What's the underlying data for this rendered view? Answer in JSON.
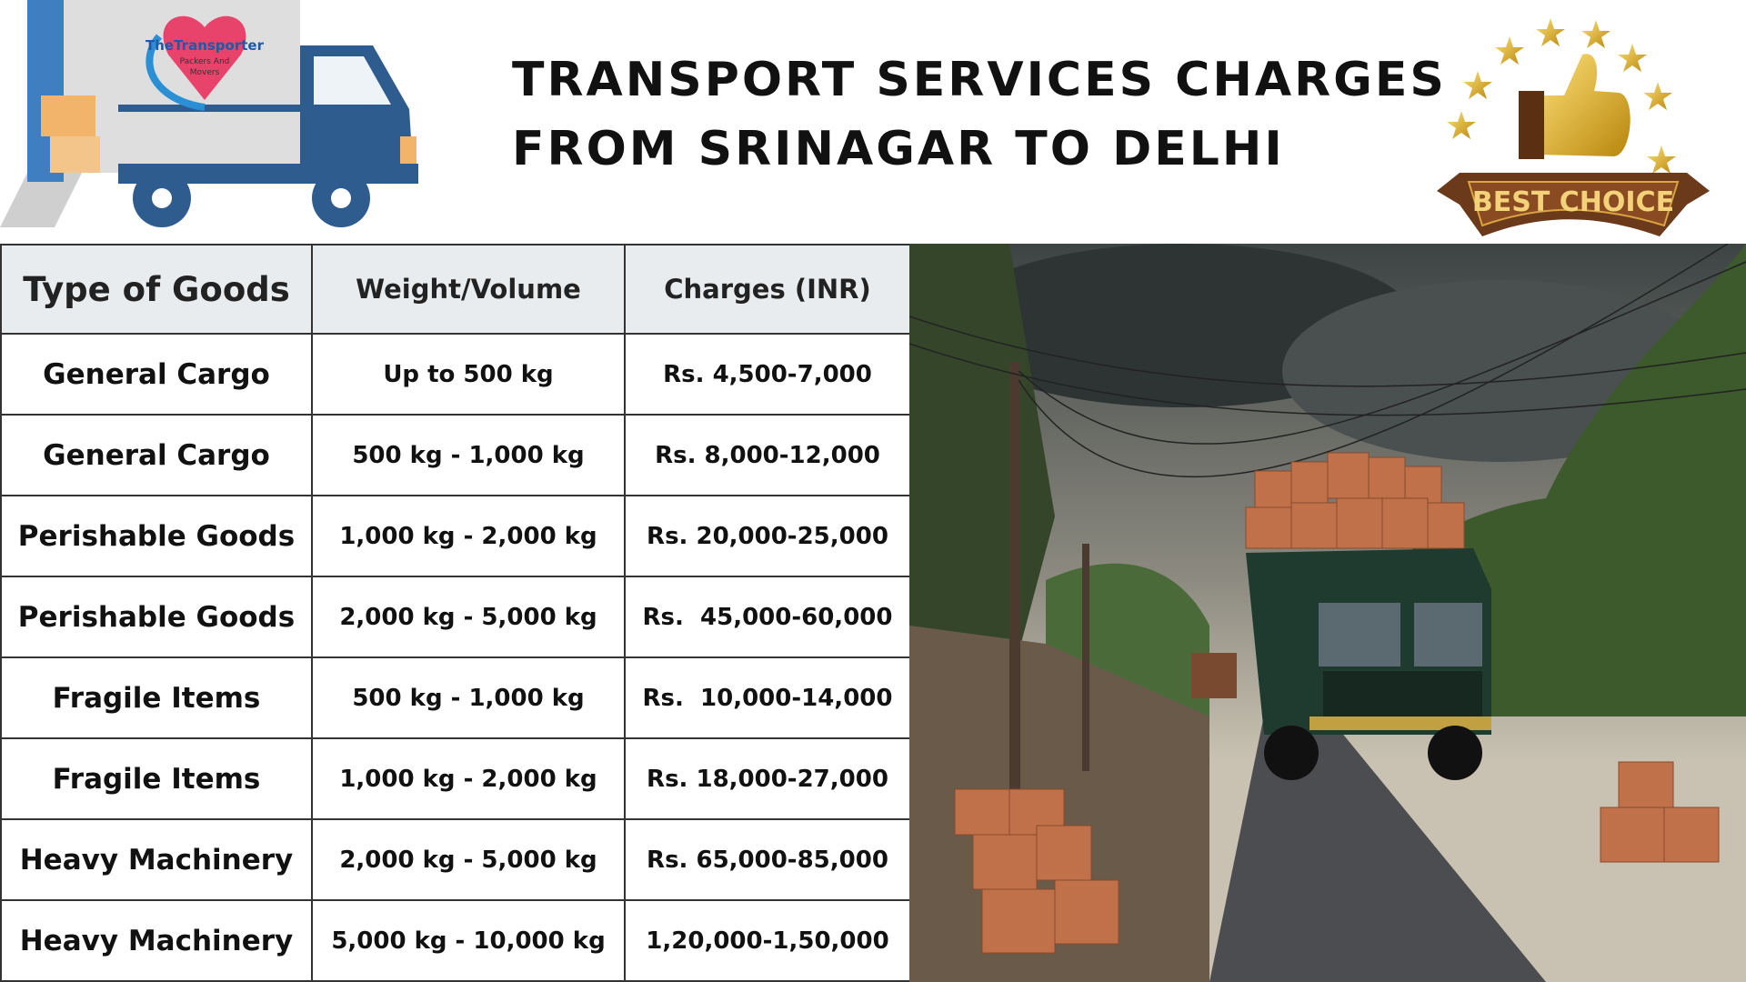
{
  "logo": {
    "lines": [
      "TheTransporter",
      "Packers And",
      "Movers"
    ]
  },
  "header": {
    "title_lines": [
      "TRANSPORT SERVICES CHARGES",
      "FROM SRINAGAR TO DELHI"
    ]
  },
  "badge": {
    "text": "BEST CHOICE"
  },
  "table": {
    "columns": [
      "Type of Goods",
      "Weight/Volume",
      "Charges (INR)"
    ],
    "rows": [
      [
        "General Cargo",
        "Up to 500 kg",
        "Rs. 4,500-7,000"
      ],
      [
        "General Cargo",
        "500 kg - 1,000 kg",
        "Rs. 8,000-12,000"
      ],
      [
        "Perishable Goods",
        "1,000 kg - 2,000 kg",
        "Rs. 20,000-25,000"
      ],
      [
        "Perishable Goods",
        "2,000 kg - 5,000 kg",
        "Rs.  45,000-60,000"
      ],
      [
        "Fragile Items",
        "500 kg - 1,000 kg",
        "Rs.  10,000-14,000"
      ],
      [
        "Fragile Items",
        "1,000 kg - 2,000 kg",
        "Rs. 18,000-27,000"
      ],
      [
        "Heavy Machinery",
        "2,000 kg - 5,000 kg",
        "Rs. 65,000-85,000"
      ],
      [
        "Heavy Machinery",
        "5,000 kg - 10,000 kg",
        "1,20,000-1,50,000"
      ]
    ]
  }
}
